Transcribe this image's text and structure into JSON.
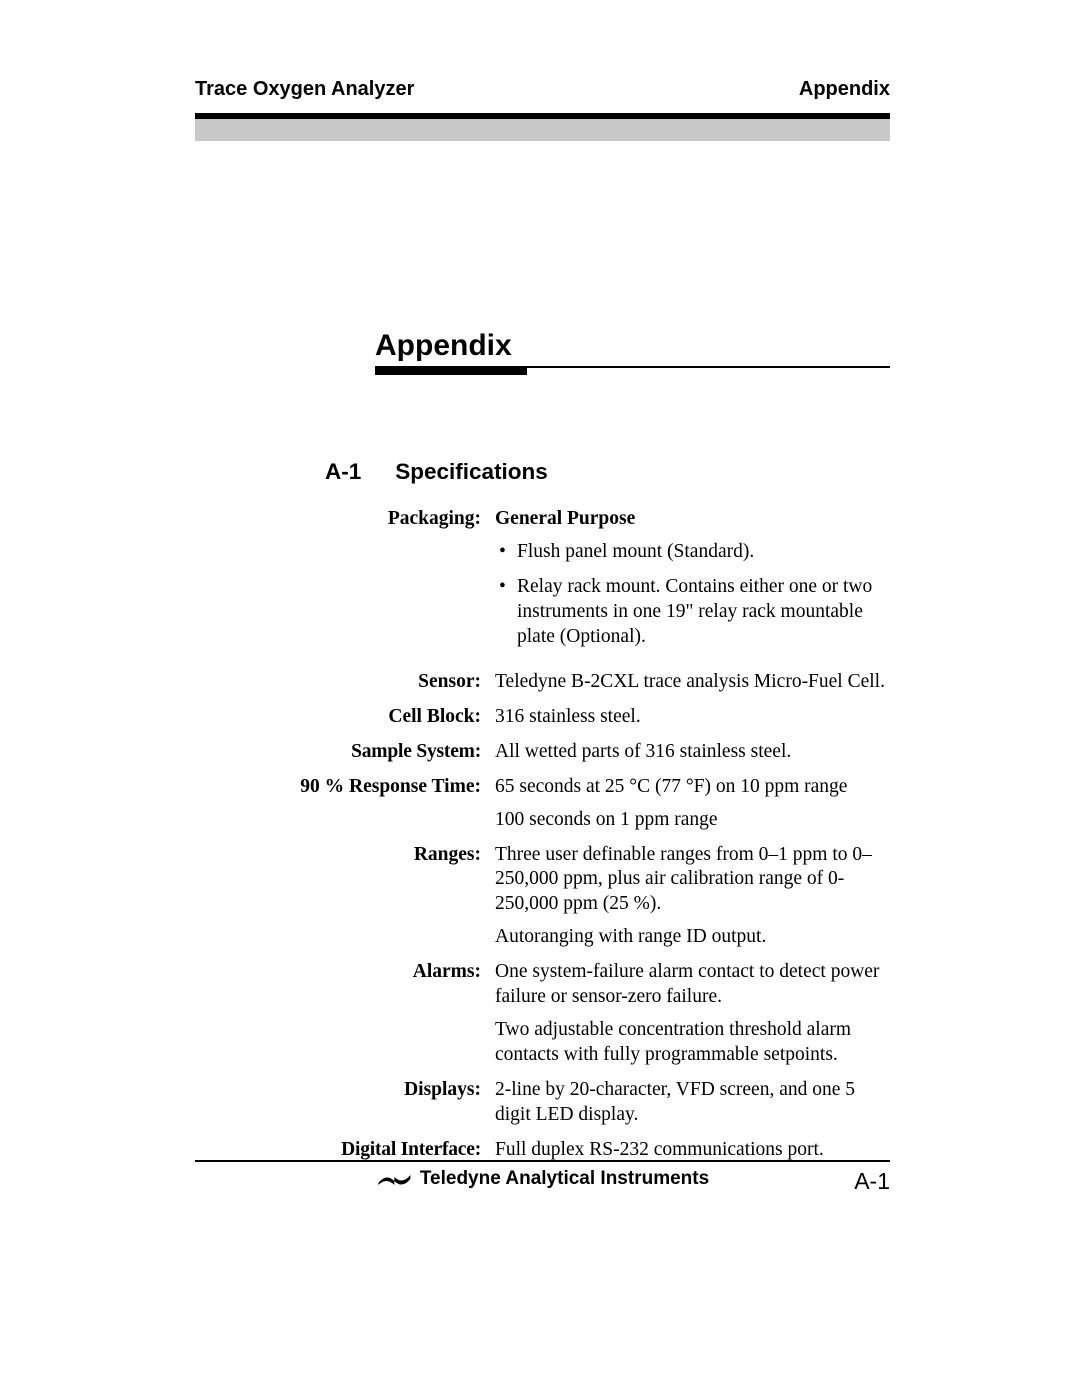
{
  "header": {
    "left": "Trace Oxygen Analyzer",
    "right": "Appendix"
  },
  "title": "Appendix",
  "section": {
    "num": "A-1",
    "name": "Specifications"
  },
  "specs": [
    {
      "label": "Packaging:",
      "lead_bold": "General Purpose",
      "bullets": [
        "Flush panel mount (Standard).",
        "Relay rack mount. Contains either one or two instruments in one 19\" relay rack mountable plate (Optional)."
      ]
    },
    {
      "label": "Sensor:",
      "paras": [
        "Teledyne B-2CXL trace analysis Micro-Fuel Cell."
      ]
    },
    {
      "label": "Cell Block:",
      "paras": [
        "316 stainless steel."
      ]
    },
    {
      "label": "Sample System:",
      "paras": [
        "All wetted parts of 316 stainless steel."
      ]
    },
    {
      "label": "90 % Response Time:",
      "paras": [
        "65 seconds at 25 °C (77 °F) on 10 ppm range",
        "100 seconds on 1 ppm range"
      ]
    },
    {
      "label": "Ranges:",
      "paras": [
        "Three user definable ranges from 0–1 ppm to 0–250,000 ppm, plus air calibration range of 0-250,000 ppm (25 %).",
        "Autoranging with range ID output."
      ]
    },
    {
      "label": "Alarms:",
      "paras": [
        "One system-failure alarm contact to detect power failure or sensor-zero failure.",
        "Two adjustable concentration threshold alarm contacts with fully programmable setpoints."
      ]
    },
    {
      "label": "Displays:",
      "paras": [
        "2-line by 20-character, VFD screen, and one 5 digit LED display."
      ]
    },
    {
      "label": "Digital Interface:",
      "paras": [
        "Full duplex RS-232 communications port."
      ]
    }
  ],
  "footer": {
    "brand": "Teledyne Analytical Instruments",
    "page": "A-1"
  },
  "colors": {
    "text": "#000000",
    "shade": "#c8c8c8",
    "bg": "#ffffff"
  }
}
